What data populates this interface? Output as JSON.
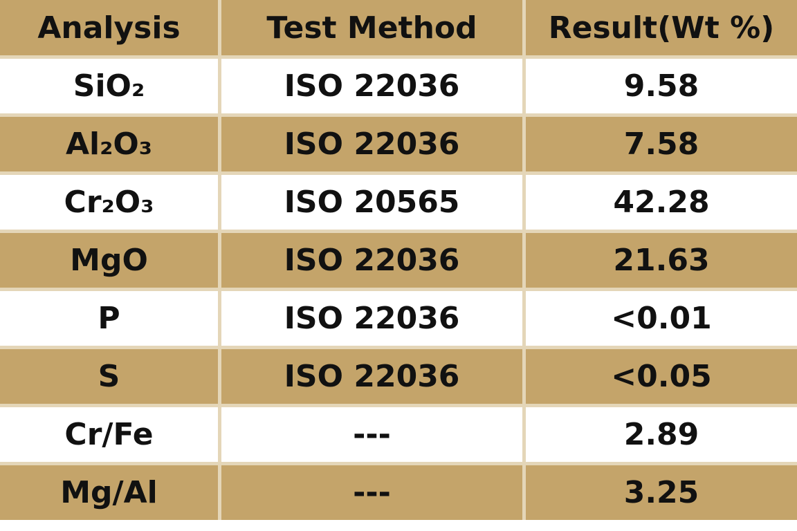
{
  "table": {
    "header": [
      "Analysis",
      "Test Method",
      "Result(Wt %)"
    ],
    "rows": [
      [
        "SiO₂",
        "ISO 22036",
        "9.58"
      ],
      [
        "Al₂O₃",
        "ISO 22036",
        "7.58"
      ],
      [
        "Cr₂O₃",
        "ISO 20565",
        "42.28"
      ],
      [
        "MgO",
        "ISO 22036",
        "21.63"
      ],
      [
        "P",
        "ISO 22036",
        "<0.01"
      ],
      [
        "S",
        "ISO 22036",
        "<0.05"
      ],
      [
        "Cr/Fe",
        "---",
        "2.89"
      ],
      [
        "Mg/Al",
        "---",
        "3.25"
      ]
    ]
  }
}
